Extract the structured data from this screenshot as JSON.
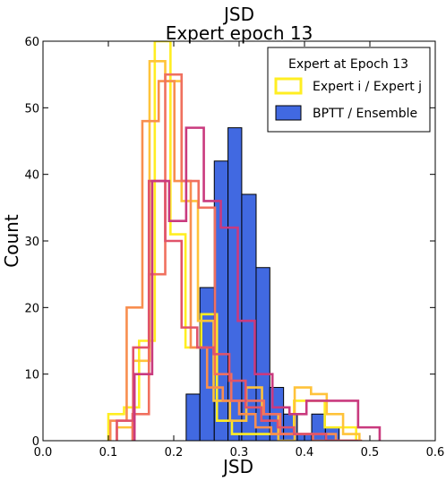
{
  "chart_data": {
    "type": "histogram",
    "title": "JSD",
    "subtitle": "Expert epoch 13",
    "xlabel": "JSD",
    "ylabel": "Count",
    "xlim": [
      0.0,
      0.6
    ],
    "ylim": [
      0,
      60
    ],
    "xticks": [
      "0.0",
      "0.1",
      "0.2",
      "0.3",
      "0.4",
      "0.5",
      "0.6"
    ],
    "yticks": [
      "0",
      "10",
      "20",
      "30",
      "40",
      "50",
      "60"
    ],
    "grid": false,
    "legend": {
      "title": "Expert at Epoch 13",
      "placement": "top-right",
      "entries": [
        {
          "label": "Expert i / Expert j",
          "style": "outline",
          "color": "#ffee22"
        },
        {
          "label": "BPTT / Ensemble",
          "style": "filled",
          "color": "#4169e1"
        }
      ]
    },
    "filled_series": {
      "name": "BPTT / Ensemble",
      "fill": "#4169e1",
      "edge": "#000000",
      "bins": [
        {
          "x0": 0.219,
          "x1": 0.24,
          "count": 7
        },
        {
          "x0": 0.24,
          "x1": 0.262,
          "count": 23
        },
        {
          "x0": 0.262,
          "x1": 0.283,
          "count": 42
        },
        {
          "x0": 0.283,
          "x1": 0.304,
          "count": 47
        },
        {
          "x0": 0.304,
          "x1": 0.326,
          "count": 37
        },
        {
          "x0": 0.326,
          "x1": 0.347,
          "count": 26
        },
        {
          "x0": 0.347,
          "x1": 0.368,
          "count": 8
        },
        {
          "x0": 0.368,
          "x1": 0.389,
          "count": 4
        },
        {
          "x0": 0.389,
          "x1": 0.411,
          "count": 1
        },
        {
          "x0": 0.411,
          "x1": 0.432,
          "count": 4
        },
        {
          "x0": 0.432,
          "x1": 0.453,
          "count": 2
        }
      ]
    },
    "outline_series": [
      {
        "color": "#ffee22",
        "edges": [
          0.1,
          0.124,
          0.147,
          0.171,
          0.195,
          0.218,
          0.242,
          0.266,
          0.289,
          0.313,
          0.337,
          0.36,
          0.384,
          0.408,
          0.431,
          0.455,
          0.479
        ],
        "counts": [
          4,
          5,
          15,
          60,
          31,
          14,
          19,
          3,
          1,
          1,
          1,
          1,
          6,
          6,
          2,
          2
        ]
      },
      {
        "color": "#ffc33a",
        "edges": [
          0.113,
          0.138,
          0.163,
          0.187,
          0.212,
          0.237,
          0.261,
          0.286,
          0.311,
          0.335,
          0.36,
          0.385,
          0.41,
          0.434,
          0.459,
          0.484
        ],
        "counts": [
          2,
          12,
          57,
          54,
          36,
          18,
          6,
          3,
          8,
          4,
          0,
          8,
          7,
          4,
          1
        ]
      },
      {
        "color": "#f88e4f",
        "edges": [
          0.103,
          0.128,
          0.152,
          0.177,
          0.201,
          0.226,
          0.251,
          0.275,
          0.3,
          0.325,
          0.349,
          0.374,
          0.398,
          0.423,
          0.448
        ],
        "counts": [
          3,
          20,
          48,
          54,
          39,
          14,
          8,
          6,
          4,
          2,
          1,
          1,
          1,
          1
        ]
      },
      {
        "color": "#f0705f",
        "edges": [
          0.137,
          0.162,
          0.187,
          0.212,
          0.238,
          0.263,
          0.288,
          0.313,
          0.338,
          0.363,
          0.388,
          0.413,
          0.438,
          0.463,
          0.488
        ],
        "counts": [
          4,
          25,
          55,
          39,
          35,
          10,
          6,
          6,
          4,
          1,
          1,
          0,
          0,
          0
        ]
      },
      {
        "color": "#e0536a",
        "edges": [
          0.113,
          0.138,
          0.162,
          0.187,
          0.212,
          0.236,
          0.261,
          0.285,
          0.31,
          0.334,
          0.359,
          0.384,
          0.408,
          0.433,
          0.457,
          0.482
        ],
        "counts": [
          3,
          14,
          39,
          30,
          17,
          14,
          13,
          9,
          5,
          3,
          2,
          1,
          1,
          0,
          0
        ]
      },
      {
        "color": "#c93a7e",
        "edges": [
          0.14,
          0.167,
          0.193,
          0.219,
          0.246,
          0.272,
          0.298,
          0.324,
          0.351,
          0.377,
          0.403,
          0.43,
          0.456,
          0.482,
          0.508,
          0.515
        ],
        "counts": [
          10,
          39,
          33,
          47,
          36,
          32,
          18,
          10,
          5,
          4,
          6,
          6,
          6,
          2,
          2
        ]
      }
    ]
  }
}
